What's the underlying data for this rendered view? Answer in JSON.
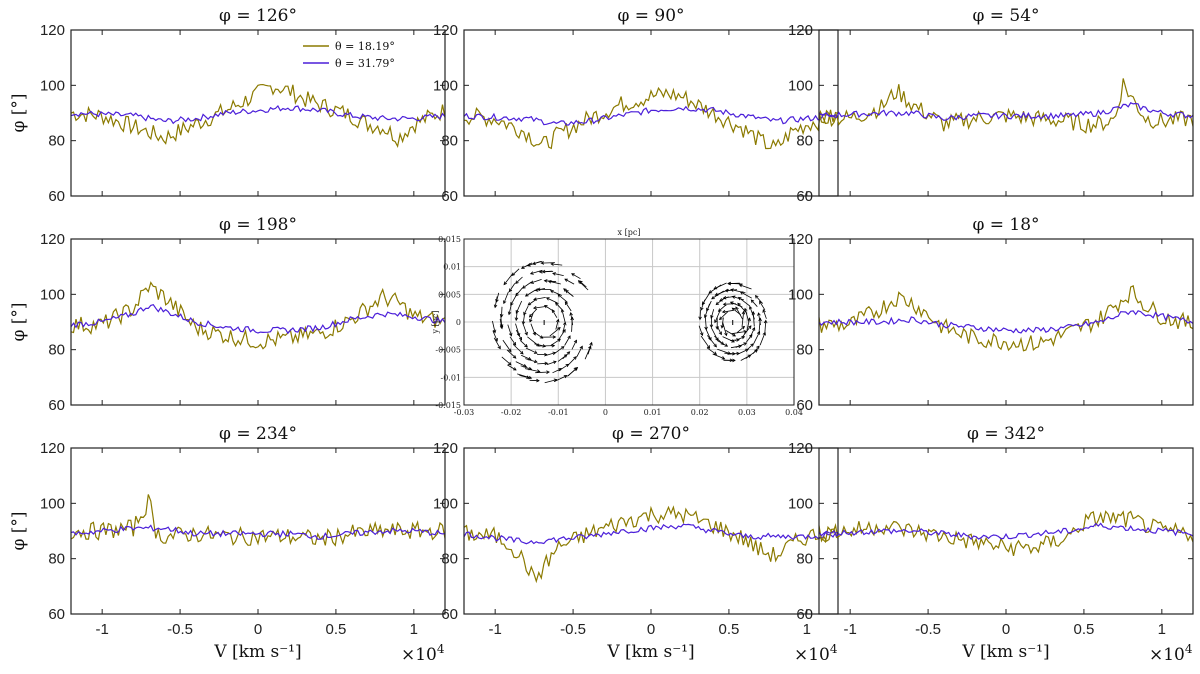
{
  "chart_data": {
    "type": "line",
    "layout": "3x3 grid",
    "colors": {
      "olive": "#8B7A00",
      "blue": "#4B1FD9",
      "axis": "#222222",
      "grid": "#c8c8c8",
      "arrow": "#000000"
    },
    "legend": {
      "entries": [
        "θ = 18.19°",
        "θ = 31.79°"
      ],
      "placement": "top-right of first panel"
    },
    "shared": {
      "ylabel": "φ [°]",
      "xlabel": "V [km s⁻¹]",
      "x_exponent": "×10",
      "x_exponent_power": "4",
      "xlim": [
        -12000,
        12000
      ],
      "ylim": [
        60,
        120
      ],
      "yticks": [
        "60",
        "80",
        "100",
        "120"
      ],
      "xticks": [
        "-1",
        "-0.5",
        "0",
        "0.5",
        "1"
      ],
      "xtick_values": [
        -10000,
        -5000,
        0,
        5000,
        10000
      ]
    },
    "panels": [
      {
        "title": "φ = 126°",
        "series": [
          {
            "name": "θ = 18.19°",
            "color": "#8B7A00",
            "x": [
              -12000,
              -10000,
              -8000,
              -6000,
              -4000,
              -2000,
              -1000,
              0,
              1000,
              2000,
              3000,
              4000,
              6000,
              7000,
              8000,
              9000,
              10000,
              12000
            ],
            "values": [
              90,
              89,
              85,
              81,
              86,
              91,
              94,
              97,
              100,
              98,
              95,
              93,
              89,
              86,
              85,
              81,
              86,
              91
            ]
          },
          {
            "name": "θ = 31.79°",
            "color": "#4B1FD9",
            "x": [
              -12000,
              -8000,
              -6000,
              -4000,
              -2000,
              0,
              2000,
              4000,
              6000,
              8000,
              10000,
              12000
            ],
            "values": [
              90,
              89,
              87,
              88,
              90,
              91,
              92,
              91,
              89,
              88,
              88,
              89
            ]
          }
        ]
      },
      {
        "title": "φ = 90°",
        "series": [
          {
            "name": "θ = 18.19°",
            "color": "#8B7A00",
            "x": [
              -12000,
              -10000,
              -8000,
              -7000,
              -6000,
              -4000,
              -2000,
              0,
              1000,
              2000,
              3000,
              4000,
              6000,
              7000,
              8000,
              9000,
              10000,
              12000
            ],
            "values": [
              89,
              88,
              83,
              78,
              82,
              88,
              93,
              96,
              97,
              96,
              93,
              90,
              84,
              80,
              77,
              83,
              86,
              89
            ]
          },
          {
            "name": "θ = 31.79°",
            "color": "#4B1FD9",
            "x": [
              -12000,
              -8000,
              -6000,
              -4000,
              -2000,
              0,
              2000,
              4000,
              6000,
              8000,
              10000,
              12000
            ],
            "values": [
              89,
              88,
              86,
              87,
              89,
              91,
              92,
              91,
              89,
              87,
              88,
              89
            ]
          }
        ]
      },
      {
        "title": "φ = 54°",
        "series": [
          {
            "name": "θ = 18.19°",
            "color": "#8B7A00",
            "x": [
              -12000,
              -10000,
              -8000,
              -7000,
              -6000,
              -4000,
              -2000,
              0,
              2000,
              4000,
              5000,
              6000,
              7000,
              7500,
              8000,
              9000,
              10000,
              12000
            ],
            "values": [
              89,
              88,
              92,
              98,
              93,
              86,
              88,
              89,
              88,
              87,
              86,
              86,
              88,
              101,
              96,
              88,
              87,
              88
            ]
          },
          {
            "name": "θ = 31.79°",
            "color": "#4B1FD9",
            "x": [
              -12000,
              -8000,
              -6000,
              -4000,
              -2000,
              0,
              2000,
              4000,
              6000,
              8000,
              10000,
              12000
            ],
            "values": [
              89,
              90,
              90,
              88,
              89,
              89,
              89,
              89,
              90,
              93,
              90,
              89
            ]
          }
        ]
      },
      {
        "title": "φ = 198°",
        "series": [
          {
            "name": "θ = 18.19°",
            "color": "#8B7A00",
            "x": [
              -12000,
              -10000,
              -8000,
              -7000,
              -6000,
              -4000,
              -2000,
              0,
              2000,
              4000,
              6000,
              7000,
              8000,
              9000,
              10000,
              12000
            ],
            "values": [
              89,
              89,
              95,
              103,
              99,
              88,
              85,
              83,
              84,
              86,
              91,
              95,
              99,
              97,
              92,
              90
            ]
          },
          {
            "name": "θ = 31.79°",
            "color": "#4B1FD9",
            "x": [
              -12000,
              -10000,
              -8000,
              -7000,
              -6000,
              -4000,
              -2000,
              0,
              2000,
              4000,
              6000,
              8000,
              10000,
              12000
            ],
            "values": [
              89,
              90,
              93,
              96,
              94,
              90,
              88,
              87,
              87,
              88,
              91,
              93,
              92,
              90
            ]
          }
        ]
      },
      {
        "title": "",
        "series": []
      },
      {
        "title": "φ = 18°",
        "series": [
          {
            "name": "θ = 18.19°",
            "color": "#8B7A00",
            "x": [
              -12000,
              -10000,
              -8000,
              -7000,
              -6000,
              -4000,
              -2000,
              0,
              2000,
              4000,
              6000,
              7000,
              8000,
              9000,
              10000,
              12000
            ],
            "values": [
              89,
              89,
              95,
              99,
              97,
              88,
              84,
              83,
              82,
              86,
              91,
              96,
              101,
              96,
              92,
              89
            ]
          },
          {
            "name": "θ = 31.79°",
            "color": "#4B1FD9",
            "x": [
              -12000,
              -10000,
              -8000,
              -6000,
              -4000,
              -2000,
              0,
              2000,
              4000,
              6000,
              8000,
              10000,
              12000
            ],
            "values": [
              90,
              90,
              90,
              91,
              89,
              88,
              87,
              87,
              88,
              90,
              94,
              92,
              90
            ]
          }
        ]
      },
      {
        "title": "φ = 234°",
        "series": [
          {
            "name": "θ = 18.19°",
            "color": "#8B7A00",
            "x": [
              -12000,
              -10000,
              -8000,
              -7000,
              -6500,
              -6000,
              -4000,
              -2000,
              0,
              2000,
              4000,
              6000,
              8000,
              10000,
              12000
            ],
            "values": [
              90,
              90,
              91,
              101,
              89,
              88,
              89,
              88,
              88,
              88,
              87,
              89,
              90,
              90,
              90
            ]
          },
          {
            "name": "θ = 31.79°",
            "color": "#4B1FD9",
            "x": [
              -12000,
              -8000,
              -6000,
              -4000,
              -2000,
              0,
              2000,
              4000,
              6000,
              8000,
              10000,
              12000
            ],
            "values": [
              89,
              91,
              91,
              89,
              89,
              89,
              89,
              88,
              89,
              90,
              90,
              89
            ]
          }
        ]
      },
      {
        "title": "φ = 270°",
        "series": [
          {
            "name": "θ = 18.19°",
            "color": "#8B7A00",
            "x": [
              -12000,
              -10000,
              -9000,
              -8000,
              -7500,
              -7000,
              -6000,
              -4000,
              -2000,
              0,
              2000,
              4000,
              6000,
              7000,
              8000,
              9000,
              10000,
              12000
            ],
            "values": [
              89,
              88,
              85,
              78,
              72,
              76,
              84,
              89,
              93,
              96,
              96,
              92,
              87,
              83,
              81,
              85,
              88,
              90
            ]
          },
          {
            "name": "θ = 31.79°",
            "color": "#4B1FD9",
            "x": [
              -12000,
              -8000,
              -6000,
              -4000,
              -2000,
              0,
              2000,
              4000,
              6000,
              8000,
              10000,
              12000
            ],
            "values": [
              89,
              86,
              87,
              88,
              90,
              91,
              92,
              90,
              88,
              88,
              88,
              89
            ]
          }
        ]
      },
      {
        "title": "φ = 342°",
        "series": [
          {
            "name": "θ = 18.19°",
            "color": "#8B7A00",
            "x": [
              -12000,
              -10000,
              -8000,
              -6000,
              -4000,
              -2000,
              0,
              2000,
              4000,
              5000,
              6000,
              8000,
              10000,
              12000
            ],
            "values": [
              89,
              90,
              92,
              90,
              88,
              86,
              84,
              84,
              88,
              93,
              95,
              94,
              90,
              89
            ]
          },
          {
            "name": "θ = 31.79°",
            "color": "#4B1FD9",
            "x": [
              -12000,
              -8000,
              -6000,
              -4000,
              -2000,
              0,
              2000,
              4000,
              6000,
              8000,
              10000,
              12000
            ],
            "values": [
              89,
              90,
              90,
              89,
              88,
              88,
              89,
              90,
              92,
              91,
              90,
              89
            ]
          }
        ]
      }
    ],
    "inset": {
      "type": "quiver",
      "xlabel": "x [pc]",
      "ylabel": "y [pc]",
      "xlim": [
        -0.03,
        0.04
      ],
      "ylim": [
        -0.015,
        0.015
      ],
      "xticks": [
        "-0.03",
        "-0.02",
        "-0.01",
        "0",
        "0.01",
        "0.02",
        "0.03",
        "0.04"
      ],
      "xtick_values": [
        -0.03,
        -0.02,
        -0.01,
        0,
        0.01,
        0.02,
        0.03,
        0.04
      ],
      "yticks": [
        "-0.015",
        "-0.01",
        "-0.005",
        "0",
        "0.005",
        "0.01",
        "0.015"
      ],
      "ytick_values": [
        -0.015,
        -0.01,
        -0.005,
        0,
        0.005,
        0.01,
        0.015
      ],
      "grid": true,
      "vortices": [
        {
          "center": [
            -0.013,
            0
          ],
          "rmax": 0.0118,
          "rmin": 0.002
        },
        {
          "center": [
            0.027,
            0
          ],
          "rmax": 0.0078,
          "rmin": 0.0015
        }
      ]
    }
  }
}
